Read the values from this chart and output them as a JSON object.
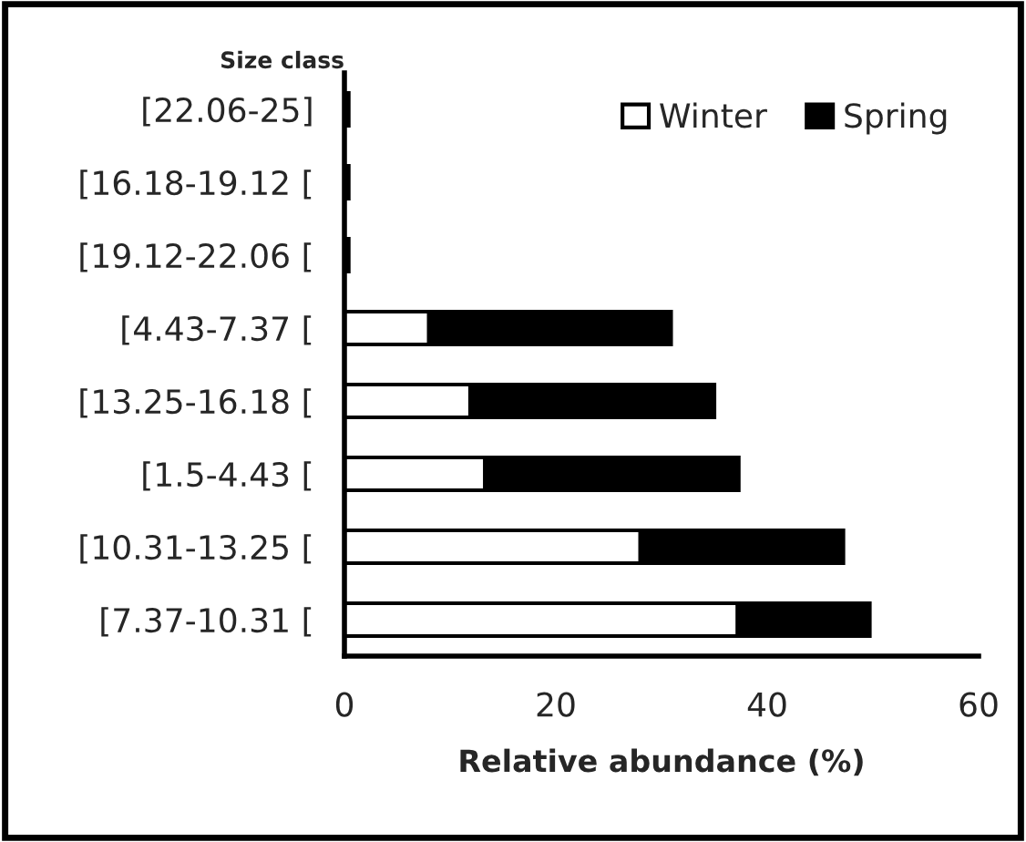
{
  "chart_data": {
    "type": "bar",
    "orientation": "horizontal",
    "stacked": true,
    "xlabel": "Relative abundance (%)",
    "ylabel": "Size class",
    "categories": [
      "[22.06-25]",
      "[16.18-19.12 [",
      "[19.12-22.06 [",
      "[4.43-7.37 [",
      "[13.25-16.18 [",
      "[1.5-4.43 [",
      "[10.31-13.25 [",
      "[7.37-10.31 ["
    ],
    "series": [
      {
        "name": "Winter",
        "color": "#ffffff",
        "values": [
          0,
          0,
          0,
          8.0,
          11.9,
          13.3,
          28.0,
          37.2
        ]
      },
      {
        "name": "Spring",
        "color": "#000000",
        "values": [
          0.4,
          0.4,
          0.4,
          22.9,
          23.1,
          24.0,
          19.2,
          12.5
        ]
      }
    ],
    "xlim": [
      0,
      60
    ],
    "xticks": [
      0,
      20,
      40,
      60
    ],
    "grid": false,
    "legend": "top right"
  }
}
